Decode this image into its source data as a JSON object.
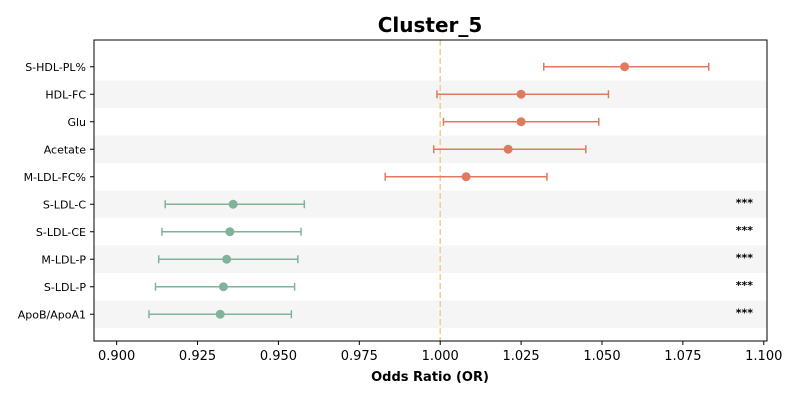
{
  "chart_data": {
    "type": "forest",
    "title": "Cluster_5",
    "xlabel": "Odds Ratio (OR)",
    "xlim": [
      0.893,
      1.101
    ],
    "xticks": [
      "0.900",
      "0.925",
      "0.950",
      "0.975",
      "1.000",
      "1.025",
      "1.050",
      "1.075",
      "1.100"
    ],
    "reference_line": 1.0,
    "rows": [
      {
        "label": "S-HDL-PL%",
        "or": 1.057,
        "ci_low": 1.032,
        "ci_high": 1.083,
        "sig": ""
      },
      {
        "label": "HDL-FC",
        "or": 1.025,
        "ci_low": 0.999,
        "ci_high": 1.052,
        "sig": ""
      },
      {
        "label": "Glu",
        "or": 1.025,
        "ci_low": 1.001,
        "ci_high": 1.049,
        "sig": ""
      },
      {
        "label": "Acetate",
        "or": 1.021,
        "ci_low": 0.998,
        "ci_high": 1.045,
        "sig": ""
      },
      {
        "label": "M-LDL-FC%",
        "or": 1.008,
        "ci_low": 0.983,
        "ci_high": 1.033,
        "sig": ""
      },
      {
        "label": "S-LDL-C",
        "or": 0.936,
        "ci_low": 0.915,
        "ci_high": 0.958,
        "sig": "***"
      },
      {
        "label": "S-LDL-CE",
        "or": 0.935,
        "ci_low": 0.914,
        "ci_high": 0.957,
        "sig": "***"
      },
      {
        "label": "M-LDL-P",
        "or": 0.934,
        "ci_low": 0.913,
        "ci_high": 0.956,
        "sig": "***"
      },
      {
        "label": "S-LDL-P",
        "or": 0.933,
        "ci_low": 0.912,
        "ci_high": 0.955,
        "sig": "***"
      },
      {
        "label": "ApoB/ApoA1",
        "or": 0.932,
        "ci_low": 0.91,
        "ci_high": 0.954,
        "sig": "***"
      }
    ],
    "colors": {
      "positive": "#e07a5f",
      "negative": "#81b29a",
      "reference": "#f2cc8f",
      "band": "#f5f5f5"
    }
  }
}
